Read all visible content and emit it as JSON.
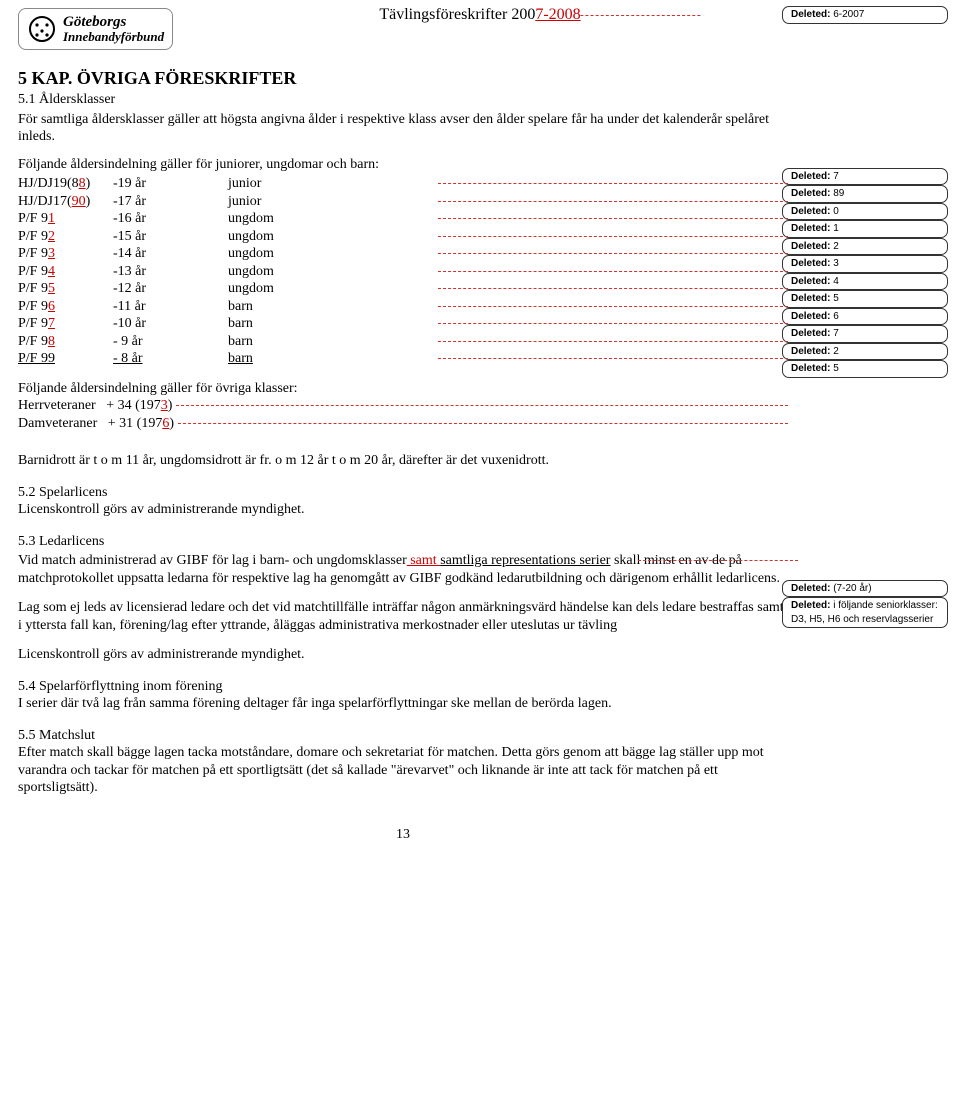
{
  "header": {
    "logo_line1": "Göteborgs",
    "logo_line2": "Innebandyförbund",
    "doc_title_prefix": "Tävlingsföreskrifter 200",
    "doc_title_ins": "7-2008"
  },
  "kap": {
    "title": "5 KAP. ÖVRIGA FÖRESKRIFTER",
    "s1_title": "5.1 Åldersklasser",
    "s1_text": "För samtliga åldersklasser gäller att högsta angivna ålder i respektive klass avser den ålder spelare får ha under det kalenderår spelåret inleds.",
    "age_intro": "Följande åldersindelning gäller för juniorer, ungdomar och barn:",
    "rows": [
      {
        "c1": "HJ/DJ19(8",
        "c1b": "8",
        "c1c": ")",
        "c2": "-19 år",
        "c3": "junior"
      },
      {
        "c1": "HJ/DJ17(",
        "c1b": "90",
        "c1c": ")",
        "c2": "-17 år",
        "c3": "junior"
      },
      {
        "c1": "P/F 9",
        "c1b": "1",
        "c1c": "",
        "c2": "-16 år",
        "c3": "ungdom"
      },
      {
        "c1": "P/F 9",
        "c1b": "2",
        "c1c": "",
        "c2": "-15 år",
        "c3": "ungdom"
      },
      {
        "c1": "P/F 9",
        "c1b": "3",
        "c1c": "",
        "c2": "-14 år",
        "c3": "ungdom"
      },
      {
        "c1": "P/F 9",
        "c1b": "4",
        "c1c": "",
        "c2": "-13 år",
        "c3": "ungdom"
      },
      {
        "c1": "P/F 9",
        "c1b": "5",
        "c1c": "",
        "c2": "-12 år",
        "c3": "ungdom"
      },
      {
        "c1": "P/F 9",
        "c1b": "6",
        "c1c": "",
        "c2": "-11 år",
        "c3": "barn"
      },
      {
        "c1": "P/F 9",
        "c1b": "7",
        "c1c": "",
        "c2": "-10 år",
        "c3": "barn"
      },
      {
        "c1": "P/F 9",
        "c1b": "8",
        "c1c": "",
        "c2": "- 9 år",
        "c3": "barn"
      }
    ],
    "new_row": {
      "c1": "P/F 99",
      "c2": "- 8 år",
      "c3": "barn"
    },
    "other_intro": "Följande åldersindelning gäller för övriga klasser:",
    "herr_a": "Herrveteraner   + 34 (197",
    "herr_b": "3",
    "herr_c": ")",
    "dam_a": "Damveteraner   + 31 (197",
    "dam_b": "6",
    "dam_c": ")",
    "barnidrott": "Barnidrott är t o m 11 år, ungdomsidrott är fr. o m 12 år t o m 20 år, därefter är det vuxenidrott.",
    "s2_title": "5.2 Spelarlicens",
    "s2_text": "Licenskontroll görs av administrerande myndighet.",
    "s3_title": "5.3 Ledarlicens",
    "s3_a": "Vid match administrerad av GIBF för lag i barn- och ungdomsklasser",
    "s3_ins1": " samt ",
    "s3_b": "samtliga representations serier",
    "s3_c": "skall minst en av de på matchprotokollet uppsatta ledarna för respektive lag ha genomgått av GIBF godkänd ledarutbildning och därigenom erhållit ledarlicens.",
    "s3_p2": "Lag som ej leds av licensierad ledare och det vid matchtillfälle inträffar någon anmärkningsvärd händelse kan dels ledare bestraffas samt i yttersta fall kan, förening/lag efter yttrande, åläggas administrativa merkostnader eller uteslutas ur tävling",
    "s3_p3": "Licenskontroll görs av administrerande myndighet.",
    "s4_title": "5.4 Spelarförflyttning inom förening",
    "s4_text": "I serier där två lag från samma förening deltager får inga spelarförflyttningar ske mellan de berörda lagen.",
    "s5_title": "5.5 Matchslut",
    "s5_text": "Efter match skall bägge lagen tacka motståndare, domare och sekretariat för matchen. Detta görs genom att bägge lag ställer upp mot varandra och tackar för matchen på ett sportligtsätt (det så kallade \"ärevarvet\" och liknande är inte att tack för matchen på ett sportsligtsätt)."
  },
  "notes_block1": [
    {
      "lbl": "Deleted:",
      "val": " 6-2007"
    }
  ],
  "notes_block2": [
    {
      "lbl": "Deleted:",
      "val": " 7"
    },
    {
      "lbl": "Deleted:",
      "val": " 89"
    },
    {
      "lbl": "Deleted:",
      "val": " 0"
    },
    {
      "lbl": "Deleted:",
      "val": " 1"
    },
    {
      "lbl": "Deleted:",
      "val": " 2"
    },
    {
      "lbl": "Deleted:",
      "val": " 3"
    },
    {
      "lbl": "Deleted:",
      "val": " 4"
    },
    {
      "lbl": "Deleted:",
      "val": " 5"
    },
    {
      "lbl": "Deleted:",
      "val": " 6"
    },
    {
      "lbl": "Deleted:",
      "val": " 7"
    },
    {
      "lbl": "Deleted:",
      "val": " 2"
    },
    {
      "lbl": "Deleted:",
      "val": " 5"
    }
  ],
  "notes_block3": [
    {
      "lbl": "Deleted:",
      "val": " (7-20 år)"
    },
    {
      "lbl": "Deleted:",
      "val": " i följande seniorklasser: D3,  H5, H6 och reservlagsserier"
    }
  ],
  "page_number": "13"
}
